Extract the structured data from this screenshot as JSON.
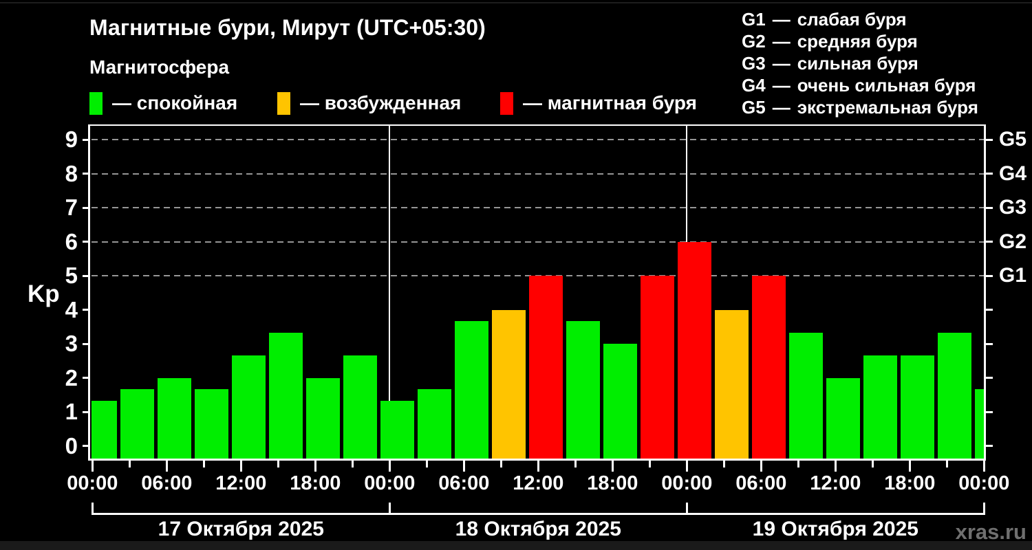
{
  "title": "Магнитные бури, Мирут (UTC+05:30)",
  "subtitle": "Магнитосфера",
  "watermark": "xras.ru",
  "ui": {
    "dash": "—"
  },
  "legend": [
    {
      "label": "— спокойная",
      "color": "#00ee00"
    },
    {
      "label": "— возбужденная",
      "color": "#ffc400"
    },
    {
      "label": "— магнитная буря",
      "color": "#ff0000"
    }
  ],
  "g_legend": [
    {
      "code": "G1",
      "label": "слабая буря"
    },
    {
      "code": "G2",
      "label": "средняя буря"
    },
    {
      "code": "G3",
      "label": "сильная буря"
    },
    {
      "code": "G4",
      "label": "очень сильная буря"
    },
    {
      "code": "G5",
      "label": "экстремальная буря"
    }
  ],
  "chart_data": {
    "type": "bar",
    "title": "Магнитные бури, Мирут (UTC+05:30)",
    "ylabel": "Kp",
    "ylim": [
      0,
      9
    ],
    "yticks": [
      0,
      1,
      2,
      3,
      4,
      5,
      6,
      7,
      8,
      9
    ],
    "grid_kp_levels": [
      5,
      6,
      7,
      8,
      9
    ],
    "right_axis": [
      {
        "kp": 5,
        "label": "G1"
      },
      {
        "kp": 6,
        "label": "G2"
      },
      {
        "kp": 7,
        "label": "G3"
      },
      {
        "kp": 8,
        "label": "G4"
      },
      {
        "kp": 9,
        "label": "G5"
      }
    ],
    "bar_interval_hours": 3,
    "x_major_tick_labels": [
      "00:00",
      "06:00",
      "12:00",
      "18:00",
      "00:00",
      "06:00",
      "12:00",
      "18:00",
      "00:00",
      "06:00",
      "12:00",
      "18:00",
      "00:00"
    ],
    "days": [
      {
        "date": "17 Октября 2025",
        "values": [
          1.33,
          1.67,
          2.0,
          1.67,
          2.67,
          3.33,
          2.0,
          2.67
        ]
      },
      {
        "date": "18 Октября 2025",
        "values": [
          1.33,
          1.67,
          3.67,
          4.0,
          5.0,
          3.67,
          3.0,
          5.0
        ]
      },
      {
        "date": "19 Октября 2025",
        "values": [
          6.0,
          4.0,
          5.0,
          3.33,
          2.0,
          2.67,
          2.67,
          3.33
        ]
      }
    ],
    "partial_next_value": 1.67,
    "thresholds": {
      "excited": 4,
      "storm": 5
    },
    "colors": {
      "quiet": "#00ee00",
      "excited": "#ffc400",
      "storm": "#ff0000"
    },
    "legend_entries": [
      "спокойная",
      "возбужденная",
      "магнитная буря"
    ]
  }
}
